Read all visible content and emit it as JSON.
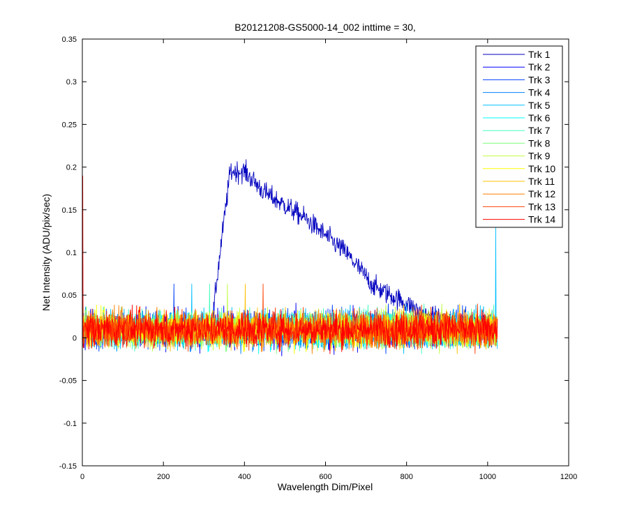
{
  "chart_data": {
    "type": "line",
    "title": "B20121208-GS5000-14_002 inttime = 30,",
    "xlabel": "Wavelength Dim/Pixel",
    "ylabel": "Net Intensity (ADU/pix/sec)",
    "xlim": [
      0,
      1200
    ],
    "ylim": [
      -0.15,
      0.35
    ],
    "x_ticks": [
      0,
      200,
      400,
      600,
      800,
      1000,
      1200
    ],
    "y_ticks": [
      -0.15,
      -0.1,
      -0.05,
      0,
      0.05,
      0.1,
      0.15,
      0.2,
      0.25,
      0.3,
      0.35
    ],
    "x_tick_labels": [
      "0",
      "200",
      "400",
      "600",
      "800",
      "1000",
      "1200"
    ],
    "y_tick_labels": [
      "-0.15",
      "-0.1",
      "-0.05",
      "0",
      "0.05",
      "0.1",
      "0.15",
      "0.2",
      "0.25",
      "0.3",
      "0.35"
    ],
    "grid": false,
    "legend_position": "top-right",
    "pixel_range": [
      1,
      1024
    ],
    "series": [
      {
        "name": "Trk 1",
        "color": "#0000bf",
        "description": "noise around 0.01 except broad peak from pixel 325 to 850, rising to about 0.2 at 370-400 then decaying to about 0.03 at 850",
        "profile": [
          [
            1,
            0.01
          ],
          [
            320,
            0.01
          ],
          [
            330,
            0.06
          ],
          [
            345,
            0.12
          ],
          [
            365,
            0.195
          ],
          [
            400,
            0.195
          ],
          [
            450,
            0.17
          ],
          [
            550,
            0.14
          ],
          [
            650,
            0.1
          ],
          [
            720,
            0.06
          ],
          [
            800,
            0.04
          ],
          [
            850,
            0.025
          ],
          [
            1024,
            0.01
          ]
        ],
        "noise_amplitude": 0.012
      },
      {
        "name": "Trk 2",
        "color": "#0000ff",
        "baseline": 0.01,
        "noise_amplitude": 0.02
      },
      {
        "name": "Trk 3",
        "color": "#0040ff",
        "baseline": 0.01,
        "noise_amplitude": 0.02
      },
      {
        "name": "Trk 4",
        "color": "#0080ff",
        "baseline": 0.01,
        "noise_amplitude": 0.02
      },
      {
        "name": "Trk 5",
        "color": "#00bfff",
        "baseline": 0.01,
        "noise_amplitude": 0.02,
        "spike": {
          "x": 1020,
          "y": 0.13
        }
      },
      {
        "name": "Trk 6",
        "color": "#00ffff",
        "baseline": 0.01,
        "noise_amplitude": 0.02
      },
      {
        "name": "Trk 7",
        "color": "#40ffbf",
        "baseline": 0.01,
        "noise_amplitude": 0.02
      },
      {
        "name": "Trk 8",
        "color": "#80ff80",
        "baseline": 0.01,
        "noise_amplitude": 0.02
      },
      {
        "name": "Trk 9",
        "color": "#bfff40",
        "baseline": 0.01,
        "noise_amplitude": 0.02
      },
      {
        "name": "Trk 10",
        "color": "#ffff00",
        "baseline": 0.01,
        "noise_amplitude": 0.02
      },
      {
        "name": "Trk 11",
        "color": "#ffbf00",
        "baseline": 0.01,
        "noise_amplitude": 0.02
      },
      {
        "name": "Trk 12",
        "color": "#ff8000",
        "baseline": 0.01,
        "noise_amplitude": 0.02
      },
      {
        "name": "Trk 13",
        "color": "#ff4000",
        "baseline": 0.01,
        "noise_amplitude": 0.02
      },
      {
        "name": "Trk 14",
        "color": "#ff0000",
        "baseline": 0.01,
        "noise_amplitude": 0.02,
        "spike": {
          "x": 1,
          "y": 0.19
        }
      }
    ]
  }
}
